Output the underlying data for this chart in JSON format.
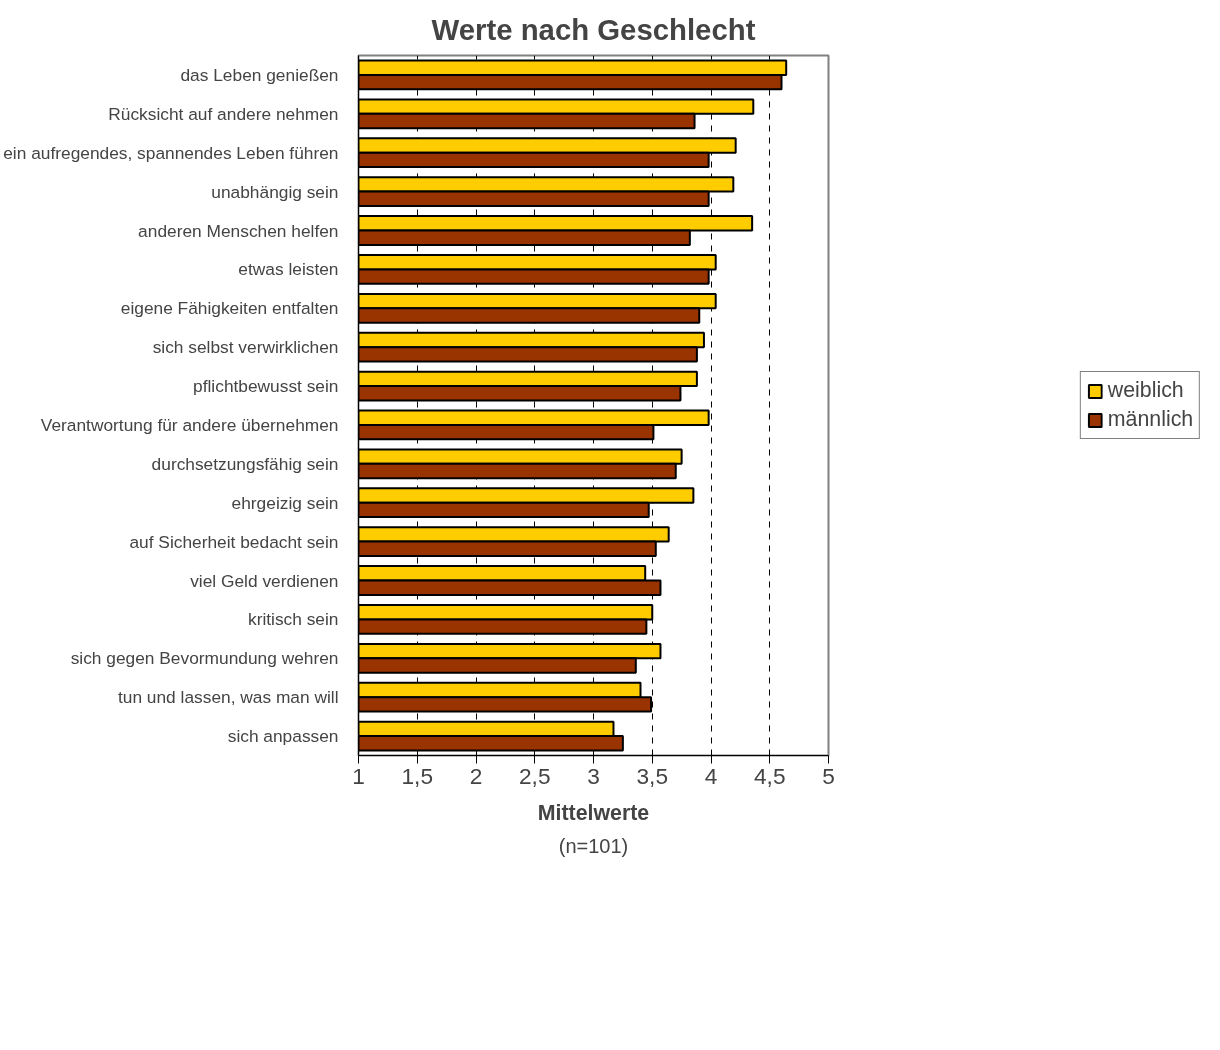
{
  "chart_data": {
    "type": "bar",
    "orientation": "horizontal",
    "title": "Werte nach Geschlecht",
    "xlabel": "Mittelwerte",
    "categories": [
      "das Leben genießen",
      "Rücksicht auf andere nehmen",
      "ein aufregendes, spannendes Leben führen",
      "unabhängig sein",
      "anderen Menschen helfen",
      "etwas leisten",
      "eigene Fähigkeiten entfalten",
      "sich selbst verwirklichen",
      "pflichtbewusst sein",
      "Verantwortung für andere übernehmen",
      "durchsetzungsfähig sein",
      "ehrgeizig sein",
      "auf Sicherheit bedacht sein",
      "viel Geld verdienen",
      "kritisch sein",
      "sich gegen Bevormundung wehren",
      "tun und lassen, was man will",
      "sich anpassen"
    ],
    "series": [
      {
        "name": "weiblich",
        "color": "#ffcc00",
        "values": [
          4.64,
          4.36,
          4.21,
          4.19,
          4.35,
          4.04,
          4.04,
          3.94,
          3.88,
          3.98,
          3.75,
          3.85,
          3.64,
          3.44,
          3.5,
          3.57,
          3.4,
          3.17
        ]
      },
      {
        "name": "männlich",
        "color": "#993300",
        "values": [
          4.6,
          3.86,
          3.98,
          3.98,
          3.82,
          3.98,
          3.9,
          3.88,
          3.74,
          3.51,
          3.7,
          3.47,
          3.53,
          3.57,
          3.45,
          3.36,
          3.49,
          3.25
        ]
      }
    ],
    "xlim": [
      1,
      5
    ],
    "xticks": [
      1,
      {
        "value": 1.5,
        "label": "1,5"
      },
      2,
      {
        "value": 2.5,
        "label": "2,5"
      },
      3,
      {
        "value": 3.5,
        "label": "3,5"
      },
      4,
      {
        "value": 4.5,
        "label": "4,5"
      },
      5
    ],
    "grid": "x",
    "legend": "right",
    "annotations": [
      "(n=101)"
    ]
  }
}
